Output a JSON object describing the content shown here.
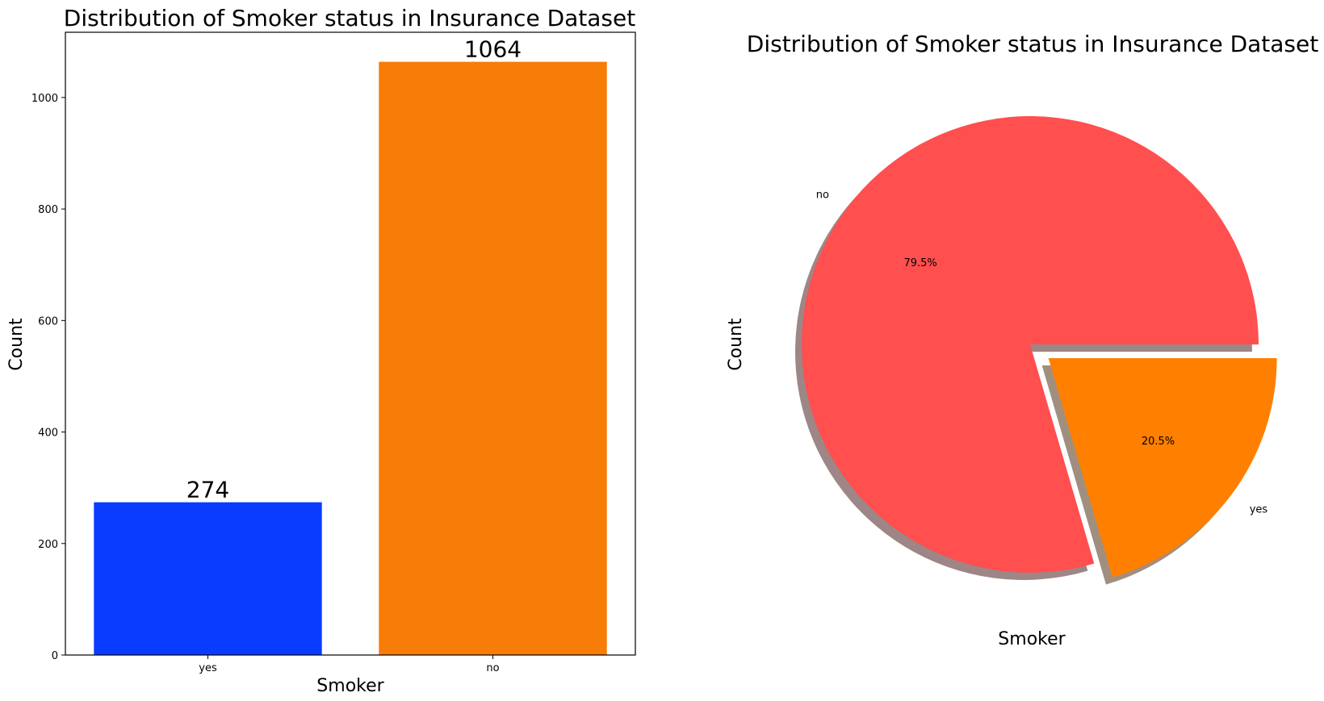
{
  "chart_data": [
    {
      "type": "bar",
      "title": "Distribution of Smoker status in Insurance Dataset",
      "xlabel": "Smoker",
      "ylabel": "Count",
      "categories": [
        "yes",
        "no"
      ],
      "values": [
        274,
        1064
      ],
      "data_labels": [
        "274",
        "1064"
      ],
      "colors": [
        "#0a3cff",
        "#f87c08"
      ],
      "ylim": [
        0,
        1117
      ],
      "yticks": [
        0,
        200,
        400,
        600,
        800,
        1000
      ],
      "grid": false
    },
    {
      "type": "pie",
      "title": "Distribution of Smoker status in Insurance Dataset",
      "xlabel": "Smoker",
      "ylabel": "Count",
      "labels": [
        "no",
        "yes"
      ],
      "values": [
        1064,
        274
      ],
      "percent_labels": [
        "79.5%",
        "20.5%"
      ],
      "colors": [
        "#ff4f4f",
        "#ff8000"
      ],
      "explode": [
        0,
        0.1
      ],
      "shadow": true,
      "start_angle": 0
    }
  ]
}
